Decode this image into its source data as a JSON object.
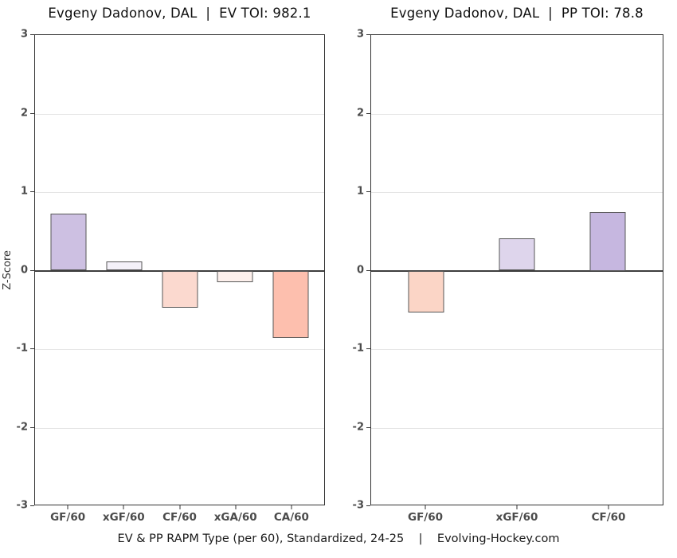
{
  "page": {
    "caption": "EV & PP RAPM Type (per 60), Standardized, 24-25    |    Evolving-Hockey.com"
  },
  "axis": {
    "ylabel": "Z-Score"
  },
  "colors": {
    "positive_strong": "#c6b7e0",
    "positive_weak": "#f4f1f9",
    "negative_strong": "#fdbfae",
    "negative_weak": "#fdf0ec",
    "bar_border": "#575757",
    "zero_line": "#3d3d3d",
    "gridline": "#e5e5e5"
  },
  "chart_data": [
    {
      "type": "bar",
      "title": "Evgeny Dadonov, DAL  |  EV TOI: 982.1",
      "categories": [
        "GF/60",
        "xGF/60",
        "CF/60",
        "xGA/60",
        "CA/60"
      ],
      "values": [
        0.73,
        0.12,
        -0.47,
        -0.15,
        -0.86
      ],
      "bar_colors": [
        "#cdc0e2",
        "#f4f1f9",
        "#fbd9cf",
        "#fdf0ec",
        "#fdbfae"
      ],
      "ylabel": "Z-Score",
      "ylim": [
        -3,
        3
      ],
      "yticks": [
        3,
        2,
        1,
        0,
        -1,
        -2,
        -3
      ],
      "grid": "horizontal-major",
      "legend": "none"
    },
    {
      "type": "bar",
      "title": "Evgeny Dadonov, DAL  |  PP TOI: 78.8",
      "categories": [
        "GF/60",
        "xGF/60",
        "CF/60"
      ],
      "values": [
        -0.53,
        0.41,
        0.75
      ],
      "bar_colors": [
        "#fbd5c6",
        "#ded5ec",
        "#c6b7e0"
      ],
      "ylabel": "Z-Score",
      "ylim": [
        -3,
        3
      ],
      "yticks": [
        3,
        2,
        1,
        0,
        -1,
        -2,
        -3
      ],
      "grid": "horizontal-major",
      "legend": "none"
    }
  ]
}
